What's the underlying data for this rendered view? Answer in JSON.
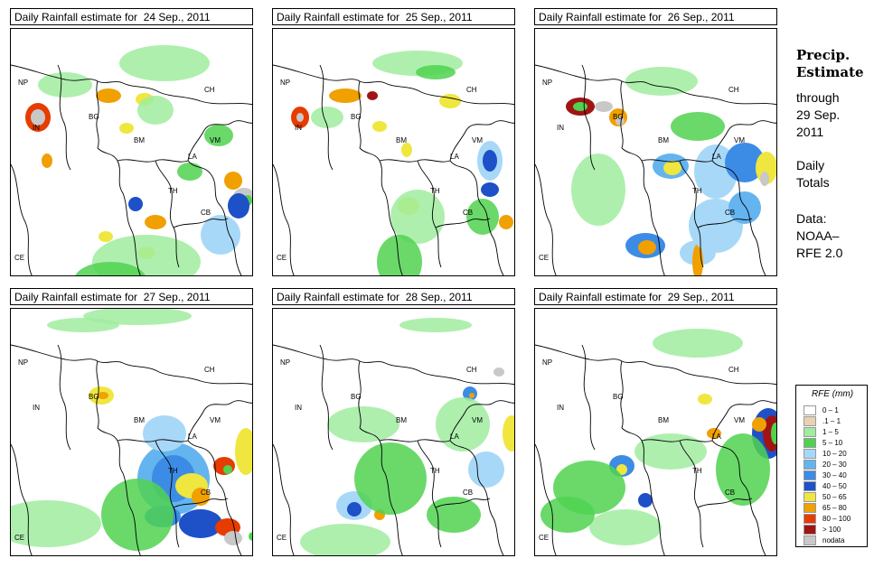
{
  "panels": [
    {
      "title": "Daily Rainfall estimate for  24 Sep., 2011",
      "blobs": [
        [
          30,
          120,
          14,
          16,
          10
        ],
        [
          30,
          120,
          8,
          9,
          12
        ],
        [
          40,
          168,
          6,
          8,
          9
        ],
        [
          108,
          96,
          14,
          8,
          9
        ],
        [
          128,
          132,
          8,
          6,
          8
        ],
        [
          148,
          100,
          10,
          7,
          8
        ],
        [
          160,
          236,
          12,
          8,
          9
        ],
        [
          150,
          270,
          10,
          7,
          8
        ],
        [
          258,
          208,
          12,
          10,
          12
        ],
        [
          262,
          212,
          5,
          6,
          13
        ],
        [
          246,
          190,
          10,
          10,
          9
        ],
        [
          230,
          140,
          16,
          12,
          3
        ],
        [
          60,
          84,
          30,
          14,
          2
        ],
        [
          160,
          112,
          20,
          16,
          2
        ],
        [
          170,
          60,
          50,
          20,
          2
        ],
        [
          150,
          280,
          60,
          30,
          2
        ],
        [
          110,
          300,
          40,
          20,
          3
        ],
        [
          232,
          250,
          22,
          22,
          4
        ],
        [
          252,
          218,
          12,
          14,
          7
        ],
        [
          105,
          252,
          8,
          6,
          8
        ],
        [
          138,
          216,
          8,
          8,
          7
        ],
        [
          198,
          180,
          14,
          10,
          3
        ]
      ]
    },
    {
      "title": "Daily Rainfall estimate for  25 Sep., 2011",
      "blobs": [
        [
          30,
          120,
          10,
          12,
          10
        ],
        [
          30,
          120,
          4,
          5,
          12
        ],
        [
          80,
          96,
          18,
          8,
          9
        ],
        [
          110,
          96,
          6,
          5,
          11
        ],
        [
          118,
          130,
          8,
          6,
          8
        ],
        [
          148,
          156,
          6,
          8,
          8
        ],
        [
          150,
          218,
          12,
          10,
          8
        ],
        [
          240,
          168,
          14,
          22,
          4
        ],
        [
          240,
          168,
          8,
          12,
          7
        ],
        [
          240,
          200,
          10,
          8,
          7
        ],
        [
          258,
          236,
          8,
          8,
          9
        ],
        [
          196,
          102,
          12,
          8,
          8
        ],
        [
          160,
          60,
          50,
          14,
          2
        ],
        [
          180,
          70,
          22,
          8,
          3
        ],
        [
          160,
          230,
          30,
          30,
          2
        ],
        [
          140,
          280,
          25,
          30,
          3
        ],
        [
          232,
          230,
          18,
          20,
          3
        ],
        [
          60,
          120,
          18,
          12,
          2
        ]
      ]
    },
    {
      "title": "Daily Rainfall estimate for  26 Sep., 2011",
      "blobs": [
        [
          50,
          108,
          16,
          10,
          11
        ],
        [
          50,
          108,
          8,
          5,
          13
        ],
        [
          76,
          108,
          10,
          6,
          12
        ],
        [
          92,
          120,
          10,
          10,
          9
        ],
        [
          94,
          124,
          5,
          5,
          12
        ],
        [
          150,
          174,
          20,
          14,
          5
        ],
        [
          152,
          176,
          10,
          8,
          8
        ],
        [
          200,
          180,
          24,
          30,
          4
        ],
        [
          232,
          170,
          22,
          22,
          6
        ],
        [
          256,
          176,
          12,
          18,
          8
        ],
        [
          254,
          188,
          5,
          8,
          12
        ],
        [
          122,
          262,
          22,
          14,
          6
        ],
        [
          124,
          264,
          10,
          8,
          9
        ],
        [
          180,
          270,
          20,
          14,
          4
        ],
        [
          180,
          280,
          6,
          20,
          9
        ],
        [
          70,
          200,
          30,
          40,
          2
        ],
        [
          200,
          240,
          30,
          30,
          4
        ],
        [
          140,
          80,
          40,
          16,
          2
        ],
        [
          180,
          130,
          30,
          16,
          3
        ],
        [
          232,
          220,
          18,
          18,
          5
        ]
      ]
    },
    {
      "title": "Daily Rainfall estimate for  27 Sep., 2011",
      "blobs": [
        [
          100,
          118,
          14,
          10,
          8
        ],
        [
          102,
          118,
          6,
          4,
          9
        ],
        [
          180,
          210,
          40,
          40,
          5
        ],
        [
          180,
          210,
          24,
          26,
          6
        ],
        [
          200,
          218,
          18,
          14,
          8
        ],
        [
          236,
          196,
          12,
          10,
          10
        ],
        [
          240,
          200,
          5,
          5,
          13
        ],
        [
          210,
          260,
          24,
          16,
          7
        ],
        [
          240,
          264,
          14,
          10,
          10
        ],
        [
          246,
          276,
          10,
          8,
          12
        ],
        [
          268,
          274,
          5,
          5,
          13
        ],
        [
          168,
          252,
          20,
          12,
          6
        ],
        [
          210,
          230,
          10,
          10,
          9
        ],
        [
          40,
          260,
          60,
          26,
          2
        ],
        [
          140,
          250,
          40,
          40,
          3
        ],
        [
          140,
          30,
          60,
          10,
          2
        ],
        [
          80,
          40,
          40,
          8,
          2
        ],
        [
          260,
          180,
          12,
          26,
          8
        ],
        [
          170,
          160,
          24,
          20,
          4
        ]
      ]
    },
    {
      "title": "Daily Rainfall estimate for  28 Sep., 2011",
      "blobs": [
        [
          218,
          116,
          8,
          8,
          6
        ],
        [
          220,
          118,
          3,
          3,
          9
        ],
        [
          90,
          240,
          20,
          16,
          4
        ],
        [
          90,
          244,
          8,
          8,
          7
        ],
        [
          118,
          250,
          6,
          6,
          9
        ],
        [
          130,
          210,
          40,
          40,
          3
        ],
        [
          236,
          200,
          20,
          20,
          4
        ],
        [
          264,
          160,
          10,
          20,
          8
        ],
        [
          200,
          250,
          30,
          20,
          3
        ],
        [
          100,
          150,
          40,
          20,
          2
        ],
        [
          210,
          150,
          30,
          30,
          2
        ],
        [
          80,
          280,
          50,
          20,
          2
        ],
        [
          250,
          92,
          6,
          5,
          12
        ],
        [
          180,
          40,
          40,
          8,
          2
        ]
      ]
    },
    {
      "title": "Daily Rainfall estimate for  29 Sep., 2011",
      "blobs": [
        [
          258,
          160,
          18,
          28,
          7
        ],
        [
          262,
          160,
          10,
          20,
          11
        ],
        [
          266,
          160,
          5,
          12,
          13
        ],
        [
          248,
          150,
          8,
          8,
          9
        ],
        [
          198,
          160,
          8,
          6,
          9
        ],
        [
          188,
          122,
          8,
          6,
          8
        ],
        [
          96,
          196,
          14,
          12,
          6
        ],
        [
          96,
          200,
          6,
          6,
          8
        ],
        [
          60,
          220,
          40,
          30,
          3
        ],
        [
          150,
          180,
          40,
          20,
          2
        ],
        [
          230,
          200,
          30,
          40,
          3
        ],
        [
          100,
          264,
          40,
          20,
          2
        ],
        [
          36,
          250,
          30,
          20,
          3
        ],
        [
          180,
          60,
          50,
          16,
          2
        ],
        [
          122,
          234,
          8,
          8,
          7
        ]
      ]
    }
  ],
  "labels": {
    "np": "NP",
    "in": "IN",
    "bg": "BG",
    "ch": "CH",
    "bm": "BM",
    "vm": "VM",
    "la": "LA",
    "th": "TH",
    "cb": "CB",
    "ce": "CE"
  },
  "sidebar": {
    "title_line1": "Precip.",
    "title_line2": "Estimate",
    "through": "through",
    "date_line1": "29 Sep.",
    "date_line2": "2011",
    "totals_line1": "Daily",
    "totals_line2": "Totals",
    "data_line1": "Data:",
    "data_line2": "NOAA–",
    "data_line3": "RFE 2.0"
  },
  "legend": {
    "title": "RFE (mm)",
    "items": [
      {
        "label": "0 – 1",
        "color": "#ffffff"
      },
      {
        "label": ".1 – 1",
        "color": "#e8d2b4"
      },
      {
        "label": "1 – 5",
        "color": "#a0eca0"
      },
      {
        "label": "5 – 10",
        "color": "#50d250"
      },
      {
        "label": "10 – 20",
        "color": "#a8d8f8"
      },
      {
        "label": "20 – 30",
        "color": "#64b4f0"
      },
      {
        "label": "30 – 40",
        "color": "#3c8ce6"
      },
      {
        "label": "40 – 50",
        "color": "#1e50c8"
      },
      {
        "label": "50 – 65",
        "color": "#f0e640"
      },
      {
        "label": "65 – 80",
        "color": "#f0a000"
      },
      {
        "label": "80 – 100",
        "color": "#e63c00"
      },
      {
        "label": "> 100",
        "color": "#a01414"
      },
      {
        "label": "nodata",
        "color": "#c8c8c8"
      }
    ]
  }
}
